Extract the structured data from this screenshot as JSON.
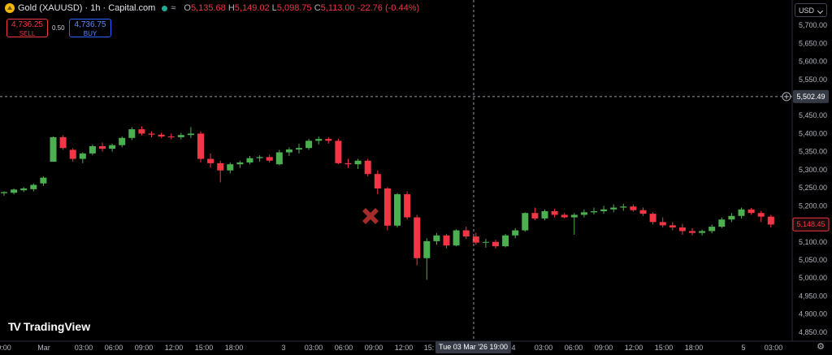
{
  "header": {
    "symbol": "Gold (XAUUSD) · 1h · Capital.com",
    "wave_icon": "≈",
    "ohlc": [
      {
        "key": "O",
        "value": "5,135.68"
      },
      {
        "key": "H",
        "value": "5,149.02"
      },
      {
        "key": "L",
        "value": "5,098.75"
      },
      {
        "key": "C",
        "value": "5,113.00"
      }
    ],
    "change": "-22.76 (-0.44%)"
  },
  "trade": {
    "sell_price": "4,736.25",
    "sell_label": "SELL",
    "spread": "0.50",
    "buy_price": "4,736.75",
    "buy_label": "BUY"
  },
  "currency": "USD",
  "logo_text": "TradingView",
  "logo_mark": "TV",
  "crosshair": {
    "price_label": "5,502.49",
    "time_label": "Tue 03 Mar '26   19:00",
    "price": 5502.49
  },
  "last_price_label": "5,148.45",
  "colors": {
    "up": "#4caf50",
    "down": "#f23645",
    "background": "#000000"
  },
  "chart_data": {
    "type": "candlestick",
    "ylim": [
      4825,
      5770
    ],
    "y_ticks": [
      4850,
      4900,
      4950,
      5000,
      5050,
      5100,
      5150,
      5200,
      5250,
      5300,
      5350,
      5400,
      5450,
      5550,
      5600,
      5650,
      5700
    ],
    "y_tick_labels": [
      "4,850.00",
      "4,900.00",
      "4,950.00",
      "5,000.00",
      "5,050.00",
      "5,100.00",
      "5,150.00",
      "5,200.00",
      "5,250.00",
      "5,300.00",
      "5,350.00",
      "5,400.00",
      "5,450.00",
      "5,550.00",
      "5,600.00",
      "5,650.00",
      "5,700.00"
    ],
    "x_tick_labels": [
      "0:00",
      "Mar",
      "03:00",
      "06:00",
      "09:00",
      "12:00",
      "15:00",
      "18:00",
      "3",
      "03:00",
      "06:00",
      "09:00",
      "12:00",
      "15:",
      "4",
      "03:00",
      "06:00",
      "09:00",
      "12:00",
      "15:00",
      "18:00",
      "5",
      "03:00"
    ],
    "last_price": 5148.45,
    "candles": [
      [
        5235,
        5240,
        5228,
        5238
      ],
      [
        5236,
        5248,
        5232,
        5245
      ],
      [
        5243,
        5252,
        5238,
        5248
      ],
      [
        5246,
        5262,
        5240,
        5258
      ],
      [
        5262,
        5282,
        5255,
        5278
      ],
      [
        5322,
        5392,
        5322,
        5390
      ],
      [
        5390,
        5395,
        5355,
        5360
      ],
      [
        5355,
        5360,
        5322,
        5330
      ],
      [
        5330,
        5348,
        5318,
        5345
      ],
      [
        5345,
        5370,
        5340,
        5365
      ],
      [
        5365,
        5375,
        5350,
        5358
      ],
      [
        5358,
        5372,
        5350,
        5368
      ],
      [
        5368,
        5392,
        5362,
        5388
      ],
      [
        5388,
        5418,
        5382,
        5412
      ],
      [
        5412,
        5420,
        5395,
        5400
      ],
      [
        5400,
        5406,
        5390,
        5397
      ],
      [
        5397,
        5402,
        5388,
        5392
      ],
      [
        5392,
        5400,
        5384,
        5390
      ],
      [
        5390,
        5402,
        5384,
        5396
      ],
      [
        5396,
        5418,
        5388,
        5400
      ],
      [
        5400,
        5406,
        5320,
        5330
      ],
      [
        5330,
        5345,
        5305,
        5318
      ],
      [
        5318,
        5325,
        5265,
        5298
      ],
      [
        5298,
        5320,
        5290,
        5315
      ],
      [
        5315,
        5325,
        5305,
        5320
      ],
      [
        5320,
        5338,
        5315,
        5332
      ],
      [
        5332,
        5340,
        5322,
        5335
      ],
      [
        5335,
        5342,
        5320,
        5325
      ],
      [
        5315,
        5355,
        5312,
        5348
      ],
      [
        5348,
        5362,
        5338,
        5356
      ],
      [
        5356,
        5372,
        5345,
        5360
      ],
      [
        5360,
        5385,
        5355,
        5380
      ],
      [
        5380,
        5392,
        5370,
        5385
      ],
      [
        5385,
        5390,
        5372,
        5380
      ],
      [
        5380,
        5386,
        5315,
        5318
      ],
      [
        5318,
        5330,
        5305,
        5315
      ],
      [
        5315,
        5330,
        5302,
        5325
      ],
      [
        5325,
        5330,
        5282,
        5288
      ],
      [
        5288,
        5298,
        5232,
        5248
      ],
      [
        5248,
        5252,
        5132,
        5145
      ],
      [
        5145,
        5235,
        5140,
        5232
      ],
      [
        5232,
        5240,
        5162,
        5168
      ],
      [
        5168,
        5175,
        5035,
        5055
      ],
      [
        5055,
        5110,
        4995,
        5102
      ],
      [
        5102,
        5125,
        5092,
        5118
      ],
      [
        5118,
        5122,
        5082,
        5090
      ],
      [
        5090,
        5135,
        5088,
        5132
      ],
      [
        5132,
        5142,
        5108,
        5115
      ],
      [
        5115,
        5125,
        5092,
        5098
      ],
      [
        5098,
        5108,
        5084,
        5100
      ],
      [
        5100,
        5106,
        5082,
        5088
      ],
      [
        5088,
        5122,
        5085,
        5118
      ],
      [
        5118,
        5138,
        5110,
        5132
      ],
      [
        5132,
        5182,
        5128,
        5180
      ],
      [
        5180,
        5195,
        5160,
        5165
      ],
      [
        5165,
        5190,
        5160,
        5185
      ],
      [
        5185,
        5192,
        5168,
        5175
      ],
      [
        5175,
        5180,
        5165,
        5168
      ],
      [
        5168,
        5180,
        5120,
        5175
      ],
      [
        5175,
        5190,
        5168,
        5182
      ],
      [
        5182,
        5195,
        5176,
        5185
      ],
      [
        5185,
        5200,
        5178,
        5190
      ],
      [
        5190,
        5204,
        5182,
        5195
      ],
      [
        5195,
        5206,
        5186,
        5198
      ],
      [
        5198,
        5204,
        5184,
        5188
      ],
      [
        5188,
        5195,
        5172,
        5178
      ],
      [
        5178,
        5182,
        5148,
        5155
      ],
      [
        5155,
        5168,
        5140,
        5146
      ],
      [
        5146,
        5155,
        5132,
        5140
      ],
      [
        5140,
        5150,
        5120,
        5130
      ],
      [
        5130,
        5138,
        5118,
        5125
      ],
      [
        5125,
        5134,
        5118,
        5130
      ],
      [
        5130,
        5148,
        5124,
        5142
      ],
      [
        5142,
        5168,
        5138,
        5162
      ],
      [
        5162,
        5180,
        5155,
        5172
      ],
      [
        5172,
        5195,
        5165,
        5190
      ],
      [
        5190,
        5194,
        5175,
        5180
      ],
      [
        5180,
        5186,
        5155,
        5170
      ],
      [
        5170,
        5175,
        5140,
        5148
      ]
    ]
  }
}
